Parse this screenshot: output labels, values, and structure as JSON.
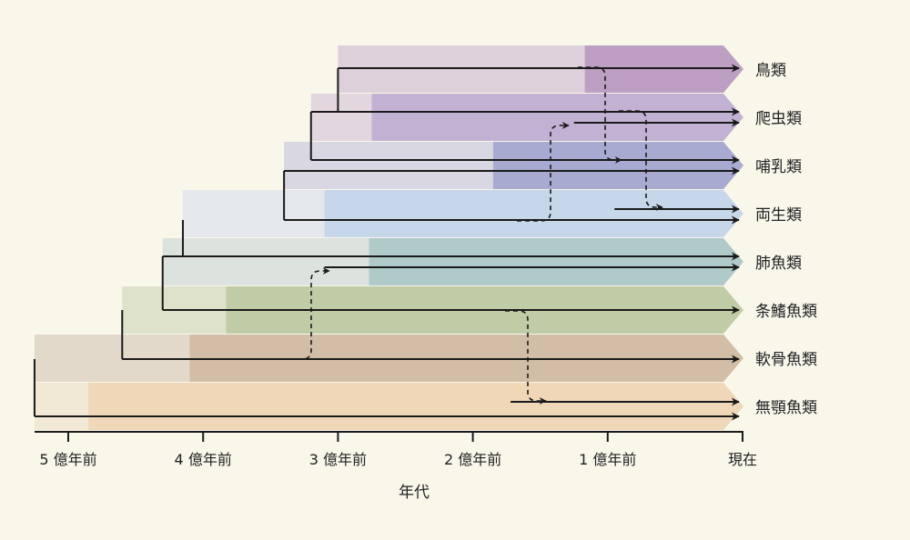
{
  "axis": {
    "title": "年代",
    "ticks": [
      {
        "value": 500,
        "label": "5 億年前"
      },
      {
        "value": 400,
        "label": "4 億年前"
      },
      {
        "value": 300,
        "label": "3 億年前"
      },
      {
        "value": 200,
        "label": "2 億年前"
      },
      {
        "value": 100,
        "label": "1 億年前"
      },
      {
        "value": 0,
        "label": "現在"
      }
    ],
    "range": [
      500,
      0
    ]
  },
  "groups": [
    {
      "name": "鳥類",
      "start": 300,
      "bright": 117,
      "pale": "#ded0db",
      "dark": "#be9fc4",
      "lines": [
        {
          "from": 300
        }
      ]
    },
    {
      "name": "爬虫類",
      "start": 320,
      "bright": 275,
      "pale": "#e3d7df",
      "dark": "#c3b1d4",
      "lines": [
        {
          "from": 320
        },
        {
          "from": 125
        }
      ]
    },
    {
      "name": "哺乳類",
      "start": 340,
      "bright": 185,
      "pale": "#d9d7e2",
      "dark": "#a9aad1",
      "lines": [
        {
          "from": 320
        },
        {
          "from": 340
        }
      ]
    },
    {
      "name": "両生類",
      "start": 415,
      "bright": 310,
      "pale": "#e4e8ec",
      "dark": "#c6d7ea",
      "lines": [
        {
          "from": 95
        },
        {
          "from": 340
        }
      ]
    },
    {
      "name": "肺魚類",
      "start": 430,
      "bright": 277,
      "pale": "#dce2de",
      "dark": "#b0c9c9",
      "lines": [
        {
          "from": 430
        },
        {
          "from": 310
        }
      ]
    },
    {
      "name": "条鰭魚類",
      "start": 460,
      "bright": 383,
      "pale": "#dfe2cb",
      "dark": "#c0cca6",
      "lines": [
        {
          "from": 430
        }
      ]
    },
    {
      "name": "軟骨魚類",
      "start": 525,
      "bright": 410,
      "pale": "#e3d9cb",
      "dark": "#d2bda6",
      "lines": [
        {
          "from": 460
        }
      ]
    },
    {
      "name": "無顎魚類",
      "start": 525,
      "bright": 485,
      "pale": "#f1e8d5",
      "dark": "#efd7b8",
      "lines": [
        {
          "from": 172
        },
        {
          "from": 525
        }
      ]
    }
  ]
}
